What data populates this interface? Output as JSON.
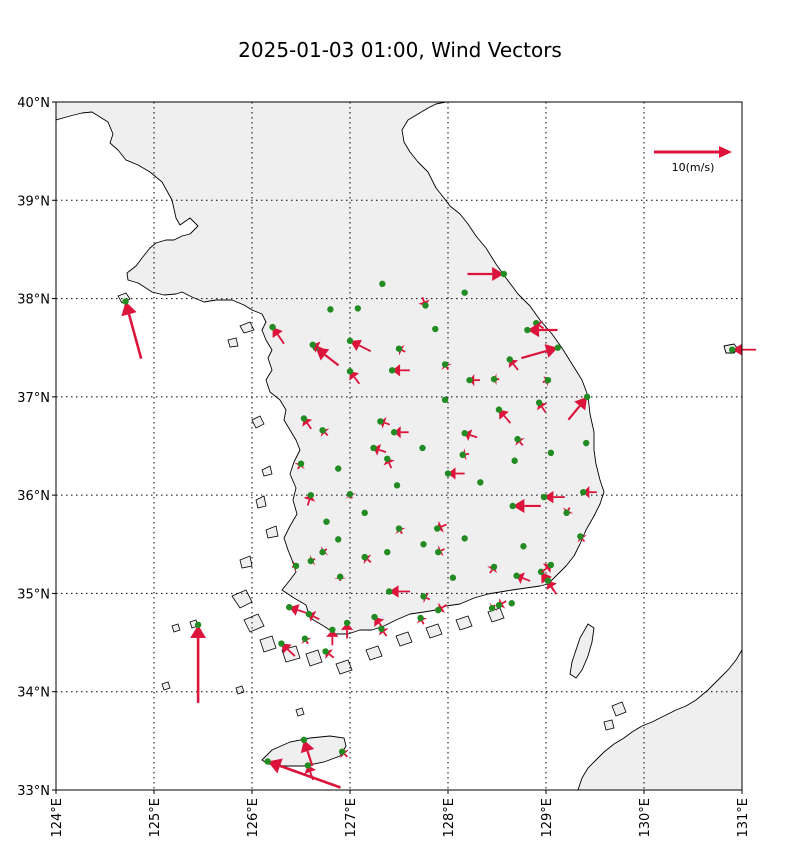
{
  "title": "2025-01-03 01:00, Wind Vectors",
  "colors": {
    "arrow": "#dc143c",
    "station": "#228b22",
    "land": "#efefef",
    "coast": "#000000"
  },
  "reference": {
    "speed": 10,
    "label": "10(m/s)"
  },
  "axes": {
    "lon_range": [
      124,
      131
    ],
    "lat_range": [
      33,
      40
    ],
    "lon_ticks": [
      124,
      125,
      126,
      127,
      128,
      129,
      130,
      131
    ],
    "lat_ticks": [
      33,
      34,
      35,
      36,
      37,
      38,
      39,
      40
    ],
    "lon_tick_labels": [
      "124°E",
      "125°E",
      "126°E",
      "127°E",
      "128°E",
      "129°E",
      "130°E",
      "131°E"
    ],
    "lat_tick_labels": [
      "33°N",
      "34°N",
      "35°N",
      "36°N",
      "37°N",
      "38°N",
      "39°N",
      "40°N"
    ],
    "grid": "dotted"
  },
  "chart_data": {
    "type": "scatter",
    "title": "2025-01-03 01:00, Wind Vectors",
    "xlim": [
      124,
      131
    ],
    "ylim": [
      33,
      40
    ],
    "grid": true,
    "series": [
      {
        "points": [
          {
            "lon": 124.71,
            "lat": 37.97,
            "u": -1.5,
            "v": 5.5
          },
          {
            "lon": 125.45,
            "lat": 34.68,
            "u": 0.0,
            "v": 7.5
          },
          {
            "lon": 126.16,
            "lat": 33.29,
            "u": -7.0,
            "v": 2.5
          },
          {
            "lon": 126.53,
            "lat": 33.51,
            "u": -0.8,
            "v": 2.5
          },
          {
            "lon": 126.57,
            "lat": 33.25,
            "u": -0.5,
            "v": 1.4
          },
          {
            "lon": 126.92,
            "lat": 33.39,
            "u": -0.5,
            "v": 0.5
          },
          {
            "lon": 128.57,
            "lat": 38.25,
            "u": 3.5,
            "v": 0.0
          },
          {
            "lon": 127.33,
            "lat": 38.15,
            "u": 0,
            "v": 0
          },
          {
            "lon": 128.17,
            "lat": 38.06,
            "u": 0,
            "v": 0
          },
          {
            "lon": 126.8,
            "lat": 37.89,
            "u": 0,
            "v": 0
          },
          {
            "lon": 127.08,
            "lat": 37.9,
            "u": 0,
            "v": 0
          },
          {
            "lon": 127.77,
            "lat": 37.93,
            "u": 0.3,
            "v": -0.8
          },
          {
            "lon": 126.21,
            "lat": 37.71,
            "u": -1.1,
            "v": 1.6
          },
          {
            "lon": 126.65,
            "lat": 37.5,
            "u": -2.2,
            "v": 1.7
          },
          {
            "lon": 127.0,
            "lat": 37.57,
            "u": -2.0,
            "v": 1.0
          },
          {
            "lon": 126.62,
            "lat": 37.53,
            "u": -1.1,
            "v": 0.5
          },
          {
            "lon": 127.0,
            "lat": 37.26,
            "u": -0.9,
            "v": 1.2
          },
          {
            "lon": 127.43,
            "lat": 37.27,
            "u": -1.7,
            "v": 0.0
          },
          {
            "lon": 127.5,
            "lat": 37.49,
            "u": -0.6,
            "v": 0.3
          },
          {
            "lon": 127.87,
            "lat": 37.69,
            "u": 0,
            "v": 0
          },
          {
            "lon": 128.9,
            "lat": 37.75,
            "u": -0.7,
            "v": 0.5
          },
          {
            "lon": 128.81,
            "lat": 37.68,
            "u": -2.9,
            "v": 0.0
          },
          {
            "lon": 129.12,
            "lat": 37.5,
            "u": 3.5,
            "v": 1.0
          },
          {
            "lon": 127.97,
            "lat": 37.33,
            "u": -0.3,
            "v": 0.5
          },
          {
            "lon": 128.22,
            "lat": 37.17,
            "u": -1.0,
            "v": 0.0
          },
          {
            "lon": 128.47,
            "lat": 37.18,
            "u": -0.5,
            "v": 0.0
          },
          {
            "lon": 128.63,
            "lat": 37.38,
            "u": -0.8,
            "v": 1.0
          },
          {
            "lon": 129.02,
            "lat": 37.17,
            "u": 0.5,
            "v": 0.2
          },
          {
            "lon": 129.42,
            "lat": 37.0,
            "u": 1.8,
            "v": 2.2
          },
          {
            "lon": 128.93,
            "lat": 36.94,
            "u": -0.6,
            "v": 0.9
          },
          {
            "lon": 128.52,
            "lat": 36.87,
            "u": -1.1,
            "v": 1.3
          },
          {
            "lon": 127.97,
            "lat": 36.97,
            "u": 0,
            "v": 0
          },
          {
            "lon": 126.53,
            "lat": 36.78,
            "u": -0.7,
            "v": 1.0
          },
          {
            "lon": 126.72,
            "lat": 36.66,
            "u": -0.5,
            "v": 0.5
          },
          {
            "lon": 127.31,
            "lat": 36.75,
            "u": -0.9,
            "v": 0.3
          },
          {
            "lon": 127.45,
            "lat": 36.64,
            "u": -1.4,
            "v": 0.0
          },
          {
            "lon": 128.17,
            "lat": 36.63,
            "u": -1.2,
            "v": 0.4
          },
          {
            "lon": 128.71,
            "lat": 36.57,
            "u": -0.5,
            "v": 0.6
          },
          {
            "lon": 129.41,
            "lat": 36.53,
            "u": 0,
            "v": 0
          },
          {
            "lon": 126.5,
            "lat": 36.32,
            "u": 0.3,
            "v": 0.5
          },
          {
            "lon": 126.88,
            "lat": 36.27,
            "u": 0,
            "v": 0
          },
          {
            "lon": 127.24,
            "lat": 36.48,
            "u": -1.2,
            "v": 0.4
          },
          {
            "lon": 127.38,
            "lat": 36.37,
            "u": -0.4,
            "v": 0.9
          },
          {
            "lon": 127.74,
            "lat": 36.48,
            "u": 0,
            "v": 0
          },
          {
            "lon": 128.15,
            "lat": 36.41,
            "u": -0.6,
            "v": -0.1
          },
          {
            "lon": 128.68,
            "lat": 36.35,
            "u": 0,
            "v": 0
          },
          {
            "lon": 129.05,
            "lat": 36.43,
            "u": 0,
            "v": 0
          },
          {
            "lon": 126.6,
            "lat": 36.0,
            "u": 0.3,
            "v": 1.0
          },
          {
            "lon": 127.0,
            "lat": 36.01,
            "u": -0.2,
            "v": 0.4
          },
          {
            "lon": 127.48,
            "lat": 36.1,
            "u": 0,
            "v": 0
          },
          {
            "lon": 128.0,
            "lat": 36.22,
            "u": -1.6,
            "v": 0.0
          },
          {
            "lon": 128.33,
            "lat": 36.13,
            "u": 0,
            "v": 0
          },
          {
            "lon": 128.98,
            "lat": 35.98,
            "u": -2.0,
            "v": 0.0
          },
          {
            "lon": 129.38,
            "lat": 36.03,
            "u": -1.3,
            "v": 0.0
          },
          {
            "lon": 126.76,
            "lat": 35.73,
            "u": 0,
            "v": 0
          },
          {
            "lon": 127.15,
            "lat": 35.82,
            "u": 0,
            "v": 0
          },
          {
            "lon": 127.5,
            "lat": 35.66,
            "u": -0.3,
            "v": 0.5
          },
          {
            "lon": 127.89,
            "lat": 35.66,
            "u": -0.9,
            "v": -0.4
          },
          {
            "lon": 128.66,
            "lat": 35.89,
            "u": -2.7,
            "v": 0.0
          },
          {
            "lon": 129.21,
            "lat": 35.82,
            "u": -0.3,
            "v": -0.5
          },
          {
            "lon": 129.35,
            "lat": 35.58,
            "u": -0.4,
            "v": 0.5
          },
          {
            "lon": 126.88,
            "lat": 35.55,
            "u": 0,
            "v": 0
          },
          {
            "lon": 126.72,
            "lat": 35.42,
            "u": -0.4,
            "v": -0.3
          },
          {
            "lon": 127.15,
            "lat": 35.37,
            "u": -0.6,
            "v": 0.5
          },
          {
            "lon": 127.38,
            "lat": 35.42,
            "u": 0,
            "v": 0
          },
          {
            "lon": 127.75,
            "lat": 35.5,
            "u": 0,
            "v": 0
          },
          {
            "lon": 127.9,
            "lat": 35.42,
            "u": -0.6,
            "v": -0.3
          },
          {
            "lon": 128.17,
            "lat": 35.56,
            "u": 0,
            "v": 0
          },
          {
            "lon": 128.47,
            "lat": 35.27,
            "u": 0.4,
            "v": 0.6
          },
          {
            "lon": 128.7,
            "lat": 35.18,
            "u": -1.3,
            "v": 0.5
          },
          {
            "lon": 128.77,
            "lat": 35.48,
            "u": 0,
            "v": 0
          },
          {
            "lon": 128.95,
            "lat": 35.22,
            "u": -1.2,
            "v": 1.8
          },
          {
            "lon": 129.02,
            "lat": 35.13,
            "u": -0.8,
            "v": 1.3
          },
          {
            "lon": 129.05,
            "lat": 35.29,
            "u": 0.9,
            "v": 0.7
          },
          {
            "lon": 126.45,
            "lat": 35.28,
            "u": 0.4,
            "v": 0.1
          },
          {
            "lon": 126.6,
            "lat": 35.33,
            "u": -0.4,
            "v": -0.2
          },
          {
            "lon": 126.9,
            "lat": 35.17,
            "u": 0,
            "v": 0.4
          },
          {
            "lon": 127.4,
            "lat": 35.02,
            "u": -2.0,
            "v": 0.0
          },
          {
            "lon": 128.05,
            "lat": 35.16,
            "u": 0,
            "v": 0
          },
          {
            "lon": 126.38,
            "lat": 34.86,
            "u": -1.8,
            "v": 0.6
          },
          {
            "lon": 126.58,
            "lat": 34.79,
            "u": -1.0,
            "v": 0.5
          },
          {
            "lon": 126.3,
            "lat": 34.49,
            "u": -1.3,
            "v": 1.2
          },
          {
            "lon": 126.54,
            "lat": 34.54,
            "u": -0.3,
            "v": 0.5
          },
          {
            "lon": 126.75,
            "lat": 34.41,
            "u": -0.8,
            "v": 0.6
          },
          {
            "lon": 126.82,
            "lat": 34.63,
            "u": 0.0,
            "v": 1.5
          },
          {
            "lon": 126.97,
            "lat": 34.7,
            "u": 0.0,
            "v": 1.5
          },
          {
            "lon": 127.25,
            "lat": 34.76,
            "u": -1.0,
            "v": 1.3
          },
          {
            "lon": 127.32,
            "lat": 34.64,
            "u": -0.5,
            "v": 0.7
          },
          {
            "lon": 127.72,
            "lat": 34.75,
            "u": -0.3,
            "v": 0.6
          },
          {
            "lon": 127.75,
            "lat": 34.97,
            "u": -0.6,
            "v": 0.3
          },
          {
            "lon": 127.9,
            "lat": 34.83,
            "u": -0.8,
            "v": -0.5
          },
          {
            "lon": 128.45,
            "lat": 34.85,
            "u": -0.3,
            "v": -0.3
          },
          {
            "lon": 128.52,
            "lat": 34.88,
            "u": -0.7,
            "v": -0.4
          },
          {
            "lon": 128.65,
            "lat": 34.9,
            "u": 0,
            "v": 0
          },
          {
            "lon": 130.9,
            "lat": 37.48,
            "u": -2.3,
            "v": 0.0
          }
        ]
      }
    ]
  }
}
